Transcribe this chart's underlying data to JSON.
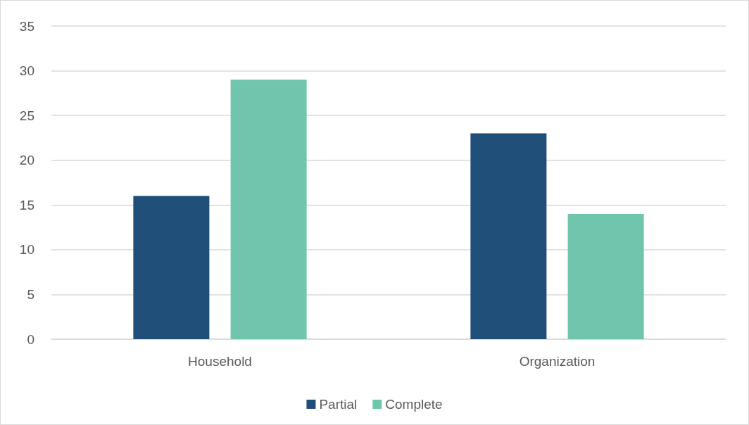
{
  "chart_data": {
    "type": "bar",
    "categories": [
      "Household",
      "Organization"
    ],
    "series": [
      {
        "name": "Partial",
        "color": "#1f4e79",
        "values": [
          16,
          23
        ]
      },
      {
        "name": "Complete",
        "color": "#70c5ad",
        "values": [
          29,
          14
        ]
      }
    ],
    "ylim": [
      0,
      35
    ],
    "yticks": [
      0,
      5,
      10,
      15,
      20,
      25,
      30,
      35
    ],
    "grid": "y",
    "legend": "bottom"
  }
}
